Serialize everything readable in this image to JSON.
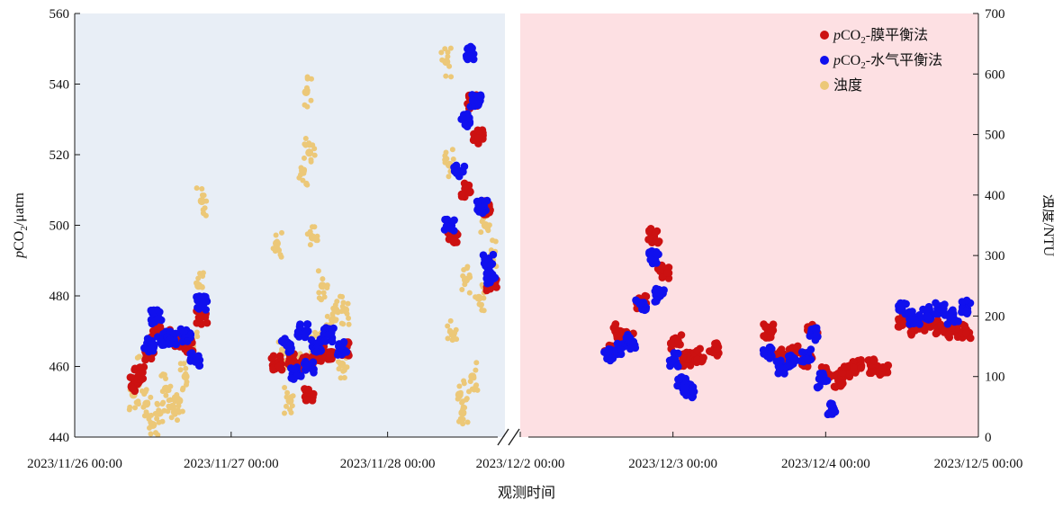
{
  "chart_data": {
    "type": "scatter",
    "xlabel": "观测时间",
    "ylabel_left": "pCO2/μatm",
    "ylabel_right": "浊度/NTU",
    "ylim_left": [
      440,
      560
    ],
    "ylim_right": [
      0,
      700
    ],
    "yticks_left": [
      "440",
      "460",
      "480",
      "500",
      "520",
      "540",
      "560"
    ],
    "yticks_right": [
      "0",
      "100",
      "200",
      "300",
      "400",
      "500",
      "600",
      "700"
    ],
    "x_axis_broken": true,
    "segments": [
      {
        "range": [
          "2023/11/26 00:00",
          "2023/11/28 18:00"
        ],
        "background": "#e8eef6",
        "tick_labels": [
          "2023/11/26 00:00",
          "2023/11/27 00:00",
          "2023/11/28 00:00"
        ]
      },
      {
        "range": [
          "2023/12/2 00:00",
          "2023/12/5 00:00"
        ],
        "background": "#fde0e3",
        "tick_labels": [
          "2023/12/2 00:00",
          "2023/12/3 00:00",
          "2023/12/4 00:00",
          "2023/12/5 00:00"
        ]
      }
    ],
    "legend": {
      "position": "top-right"
    },
    "colors": {
      "membrane": "#cc1111",
      "water_vapor": "#1010ee",
      "turbidity": "#ecc878"
    },
    "series": [
      {
        "name": "pCO2-膜平衡法",
        "axis": "left",
        "points": [
          [
            "2023/11/26 09:00",
            455
          ],
          [
            "2023/11/26 10:00",
            458
          ],
          [
            "2023/11/26 11:30",
            463
          ],
          [
            "2023/11/26 12:30",
            470
          ],
          [
            "2023/11/26 14:00",
            469
          ],
          [
            "2023/11/26 16:00",
            467
          ],
          [
            "2023/11/26 17:30",
            466
          ],
          [
            "2023/11/26 19:30",
            474
          ],
          [
            "2023/11/27 07:00",
            461
          ],
          [
            "2023/11/27 09:00",
            462
          ],
          [
            "2023/11/27 11:00",
            461
          ],
          [
            "2023/11/27 12:00",
            452
          ],
          [
            "2023/11/27 13:00",
            462
          ],
          [
            "2023/11/27 15:00",
            464
          ],
          [
            "2023/11/27 17:30",
            465
          ],
          [
            "2023/11/28 10:00",
            497
          ],
          [
            "2023/11/28 12:00",
            510
          ],
          [
            "2023/11/28 13:00",
            535
          ],
          [
            "2023/11/28 14:00",
            525
          ],
          [
            "2023/11/28 15:00",
            505
          ],
          [
            "2023/11/28 16:00",
            483
          ],
          [
            "2023/12/2 14:00",
            465
          ],
          [
            "2023/12/2 15:30",
            470
          ],
          [
            "2023/12/2 17:00",
            468
          ],
          [
            "2023/12/2 19:00",
            478
          ],
          [
            "2023/12/2 21:00",
            497
          ],
          [
            "2023/12/2 22:30",
            487
          ],
          [
            "2023/12/3 00:30",
            467
          ],
          [
            "2023/12/3 02:00",
            462
          ],
          [
            "2023/12/3 04:00",
            463
          ],
          [
            "2023/12/3 06:30",
            465
          ],
          [
            "2023/12/3 15:00",
            470
          ],
          [
            "2023/12/3 17:00",
            463
          ],
          [
            "2023/12/3 19:00",
            464
          ],
          [
            "2023/12/3 21:00",
            462
          ],
          [
            "2023/12/3 22:00",
            470
          ],
          [
            "2023/12/4 00:00",
            458
          ],
          [
            "2023/12/4 02:00",
            456
          ],
          [
            "2023/12/4 03:00",
            459
          ],
          [
            "2023/12/4 05:00",
            460
          ],
          [
            "2023/12/4 07:30",
            460
          ],
          [
            "2023/12/4 09:00",
            459
          ],
          [
            "2023/12/4 12:00",
            473
          ],
          [
            "2023/12/4 14:00",
            471
          ],
          [
            "2023/12/4 16:00",
            472
          ],
          [
            "2023/12/4 18:00",
            471
          ],
          [
            "2023/12/4 20:00",
            470
          ],
          [
            "2023/12/4 22:00",
            470
          ]
        ]
      },
      {
        "name": "pCO2-水气平衡法",
        "axis": "left",
        "points": [
          [
            "2023/11/26 11:30",
            466
          ],
          [
            "2023/11/26 12:30",
            474
          ],
          [
            "2023/11/26 13:30",
            468
          ],
          [
            "2023/11/26 15:00",
            468
          ],
          [
            "2023/11/26 17:00",
            469
          ],
          [
            "2023/11/26 18:30",
            462
          ],
          [
            "2023/11/26 19:30",
            478
          ],
          [
            "2023/11/27 08:30",
            466
          ],
          [
            "2023/11/27 10:00",
            458
          ],
          [
            "2023/11/27 11:00",
            470
          ],
          [
            "2023/11/27 12:00",
            460
          ],
          [
            "2023/11/27 13:00",
            466
          ],
          [
            "2023/11/27 15:00",
            469
          ],
          [
            "2023/11/27 17:00",
            465
          ],
          [
            "2023/11/28 09:30",
            500
          ],
          [
            "2023/11/28 11:00",
            515
          ],
          [
            "2023/11/28 12:00",
            530
          ],
          [
            "2023/11/28 12:30",
            549
          ],
          [
            "2023/11/28 13:30",
            535
          ],
          [
            "2023/11/28 14:30",
            505
          ],
          [
            "2023/11/28 15:30",
            490
          ],
          [
            "2023/11/28 16:00",
            485
          ],
          [
            "2023/12/2 14:00",
            463
          ],
          [
            "2023/12/2 15:30",
            465
          ],
          [
            "2023/12/2 17:30",
            467
          ],
          [
            "2023/12/2 19:00",
            478
          ],
          [
            "2023/12/2 21:00",
            491
          ],
          [
            "2023/12/2 22:00",
            480
          ],
          [
            "2023/12/3 00:00",
            462
          ],
          [
            "2023/12/3 01:30",
            455
          ],
          [
            "2023/12/3 02:30",
            453
          ],
          [
            "2023/12/3 15:00",
            464
          ],
          [
            "2023/12/3 17:00",
            460
          ],
          [
            "2023/12/3 19:00",
            462
          ],
          [
            "2023/12/3 21:00",
            463
          ],
          [
            "2023/12/3 22:00",
            469
          ],
          [
            "2023/12/3 23:30",
            456
          ],
          [
            "2023/12/4 01:00",
            448
          ],
          [
            "2023/12/4 12:00",
            476
          ],
          [
            "2023/12/4 14:00",
            474
          ],
          [
            "2023/12/4 16:00",
            475
          ],
          [
            "2023/12/4 18:00",
            476
          ],
          [
            "2023/12/4 20:00",
            474
          ],
          [
            "2023/12/4 22:00",
            477
          ]
        ]
      },
      {
        "name": "浊度",
        "axis": "right",
        "points": [
          [
            "2023/11/26 09:00",
            70
          ],
          [
            "2023/11/26 10:00",
            110
          ],
          [
            "2023/11/26 11:00",
            55
          ],
          [
            "2023/11/26 12:00",
            20
          ],
          [
            "2023/11/26 13:00",
            40
          ],
          [
            "2023/11/26 14:00",
            80
          ],
          [
            "2023/11/26 15:00",
            50
          ],
          [
            "2023/11/26 16:00",
            60
          ],
          [
            "2023/11/26 17:00",
            100
          ],
          [
            "2023/11/26 18:00",
            150
          ],
          [
            "2023/11/26 19:00",
            250
          ],
          [
            "2023/11/26 19:30",
            390
          ],
          [
            "2023/11/27 07:00",
            320
          ],
          [
            "2023/11/27 08:00",
            140
          ],
          [
            "2023/11/27 09:00",
            60
          ],
          [
            "2023/11/27 10:00",
            120
          ],
          [
            "2023/11/27 11:00",
            440
          ],
          [
            "2023/11/27 11:30",
            570
          ],
          [
            "2023/11/27 12:00",
            470
          ],
          [
            "2023/11/27 12:30",
            330
          ],
          [
            "2023/11/27 13:00",
            150
          ],
          [
            "2023/11/27 14:00",
            250
          ],
          [
            "2023/11/27 15:00",
            180
          ],
          [
            "2023/11/27 16:00",
            210
          ],
          [
            "2023/11/27 17:00",
            120
          ],
          [
            "2023/11/27 17:30",
            210
          ],
          [
            "2023/11/28 09:00",
            620
          ],
          [
            "2023/11/28 09:30",
            450
          ],
          [
            "2023/11/28 10:00",
            170
          ],
          [
            "2023/11/28 11:00",
            70
          ],
          [
            "2023/11/28 11:30",
            40
          ],
          [
            "2023/11/28 12:00",
            260
          ],
          [
            "2023/11/28 13:00",
            100
          ],
          [
            "2023/11/28 14:00",
            230
          ],
          [
            "2023/11/28 15:00",
            350
          ],
          [
            "2023/11/28 16:00",
            300
          ]
        ]
      }
    ]
  }
}
